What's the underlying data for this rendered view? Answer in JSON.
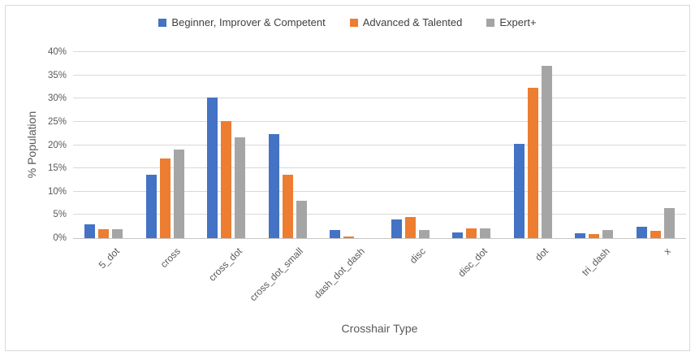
{
  "frame": {
    "border_color": "#D9D9D9",
    "background": "#FFFFFF"
  },
  "chart_data": {
    "type": "bar",
    "title": "",
    "xlabel": "Crosshair Type",
    "ylabel": "% Population",
    "ylim": [
      0,
      40
    ],
    "ytick_step": 5,
    "ytick_suffix": "%",
    "grid": true,
    "legend_position": "top-center",
    "categories": [
      "5_dot",
      "cross",
      "cross_dot",
      "cross_dot_small",
      "dash_dot_dash",
      "disc",
      "disc_dot",
      "dot",
      "tri_dash",
      "x"
    ],
    "series": [
      {
        "name": "Beginner, Improver & Competent",
        "color": "#4472C4",
        "values": [
          3.0,
          13.7,
          30.2,
          22.3,
          1.7,
          4.0,
          1.3,
          20.2,
          1.0,
          2.5
        ]
      },
      {
        "name": "Advanced & Talented",
        "color": "#ED7D31",
        "values": [
          2.0,
          17.2,
          25.2,
          13.7,
          0.4,
          4.5,
          2.1,
          32.4,
          0.9,
          1.5
        ]
      },
      {
        "name": "Expert+",
        "color": "#A5A5A5",
        "values": [
          2.0,
          19.1,
          21.7,
          8.0,
          0.0,
          1.7,
          2.1,
          37.0,
          1.7,
          6.5
        ]
      }
    ],
    "colors": {
      "gridline": "#D9D9D9",
      "axis_line": "#C8C6C4",
      "text": "#595959"
    }
  }
}
